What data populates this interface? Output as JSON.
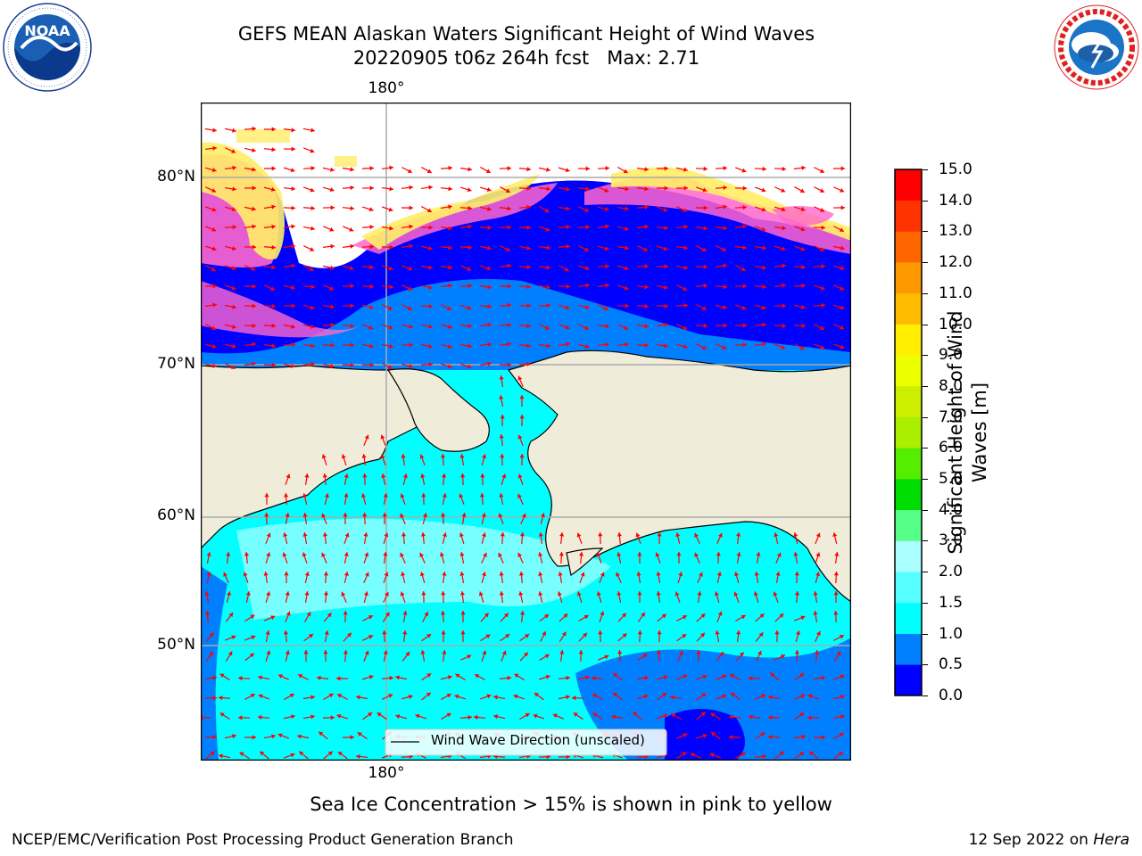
{
  "header": {
    "title_line1": "GEFS MEAN Alaskan Waters Significant Height of Wind Waves",
    "title_line2": "20220905 t06z 264h fcst   Max: 2.71"
  },
  "logos": {
    "left": {
      "text": "NOAA",
      "ring_text": "NATIONAL OCEANIC AND ATMOSPHERIC ADMINISTRATION · U.S. DEPARTMENT OF COMMERCE"
    },
    "right": {
      "ring_text": "NATIONAL WEATHER SERVICE"
    }
  },
  "map": {
    "lon_label_top": "180°",
    "lon_label_bottom": "180°",
    "lat_labels": [
      "80°N",
      "70°N",
      "60°N",
      "50°N"
    ],
    "legend_label": "Wind Wave Direction (unscaled)",
    "colors": {
      "land": "#efecd9",
      "ocean_low": "#0000ff",
      "ocean_mid": "#0080ff",
      "ocean_cyan": "#00ffff",
      "ocean_light": "#5fffff",
      "ice_pink": "#ff66cc",
      "ice_yellow": "#ffee33",
      "arrow": "#ff0000"
    }
  },
  "colorbar": {
    "title": "Significant Height of Wind Waves [m]",
    "ticks": [
      "0.0",
      "0.5",
      "1.0",
      "1.5",
      "2.0",
      "3.0",
      "4.0",
      "5.0",
      "6.0",
      "7.0",
      "8.0",
      "9.0",
      "10.0",
      "11.0",
      "12.0",
      "13.0",
      "14.0",
      "15.0"
    ],
    "colors": [
      "#0000ff",
      "#0080ff",
      "#00ffff",
      "#55ffff",
      "#aaffff",
      "#55ff88",
      "#00dd00",
      "#55ee00",
      "#aaee00",
      "#ccee00",
      "#eeff00",
      "#ffee00",
      "#ffbb00",
      "#ff9900",
      "#ff6600",
      "#ff3300",
      "#ff0000"
    ]
  },
  "footer": {
    "note": "Sea Ice Concentration > 15% is shown in pink to yellow",
    "left": "NCEP/EMC/Verification Post Processing Product Generation Branch",
    "right_prefix": "12 Sep 2022 on ",
    "right_host": "Hera"
  }
}
